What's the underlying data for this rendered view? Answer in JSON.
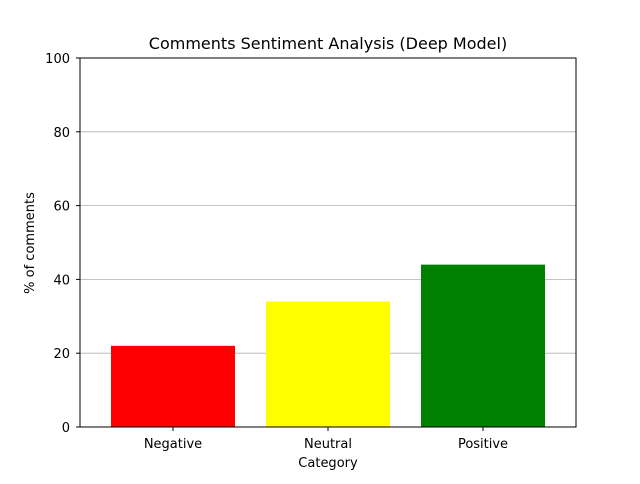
{
  "chart_data": {
    "type": "bar",
    "title": "Comments Sentiment Analysis (Deep Model)",
    "xlabel": "Category",
    "ylabel": "% of comments",
    "categories": [
      "Negative",
      "Neutral",
      "Positive"
    ],
    "values": [
      22,
      34,
      44
    ],
    "colors": [
      "#ff0000",
      "#ffff00",
      "#008000"
    ],
    "ylim": [
      0,
      100
    ],
    "yticks": [
      0,
      20,
      40,
      60,
      80,
      100
    ],
    "grid": "horizontal"
  }
}
